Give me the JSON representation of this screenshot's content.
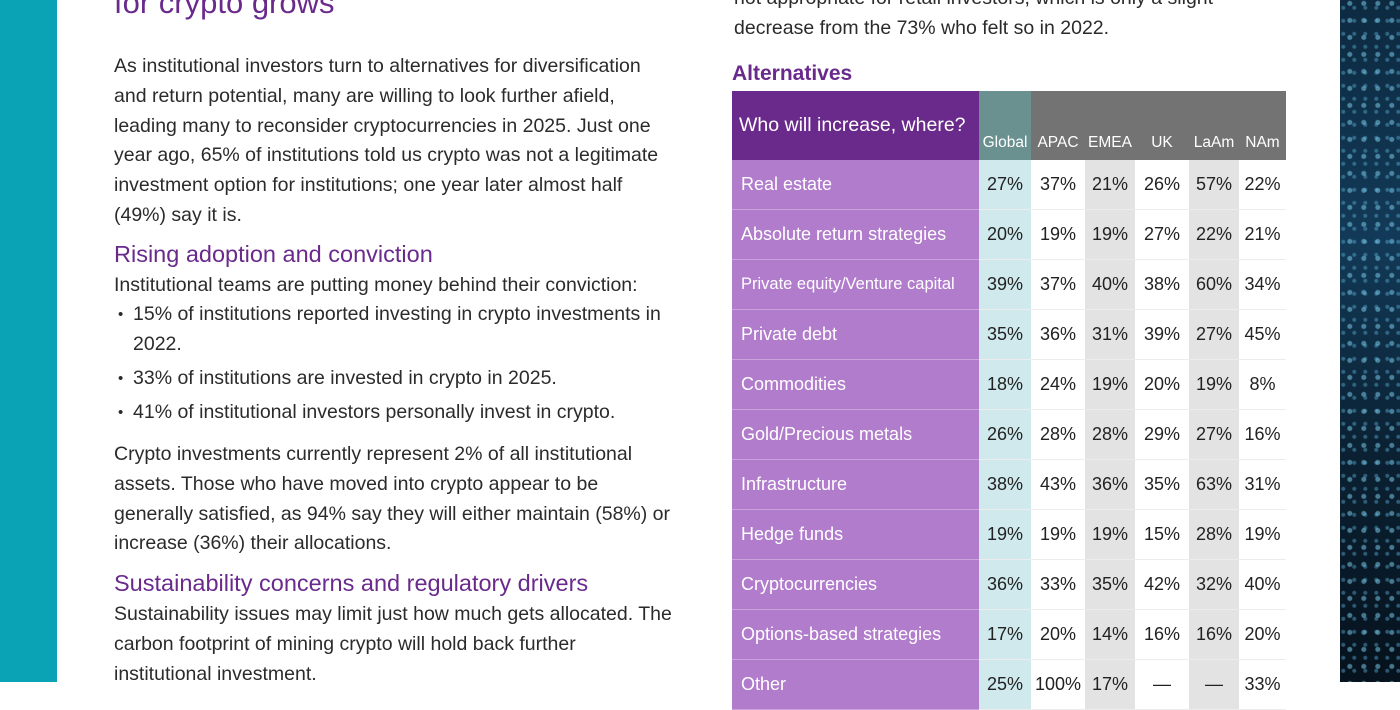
{
  "left_column": {
    "partial_title": "for crypto grows",
    "intro_paragraph": "As institutional investors turn to alternatives for diversification and return potential, many are willing to look further afield, leading many to reconsider cryptocurrencies in 2025. Just one year ago, 65% of institutions told us crypto was not a legitimate investment option for institutions; one year later almost half (49%) say it is.",
    "section1_heading": "Rising adoption and conviction",
    "section1_lead": "Institutional teams are putting money behind their conviction:",
    "section1_bullets": [
      "15% of institutions reported investing in crypto investments in 2022.",
      "33% of institutions are invested in crypto in 2025.",
      "41% of institutional investors personally invest in crypto."
    ],
    "section1_paragraph": "Crypto investments currently represent 2% of all institutional assets. Those who have moved into crypto appear to be generally satisfied, as 94% say they will either maintain (58%) or increase (36%) their allocations.",
    "section2_heading": "Sustainability concerns and regulatory drivers",
    "section2_paragraph": "Sustainability issues may limit just how much gets allocated. The carbon footprint of mining crypto will hold back further institutional investment."
  },
  "right_column": {
    "intro_partial": "not appropriate for retail investors, which is only a slight decrease from the 73% who felt so in 2022.",
    "table_heading": "Alternatives",
    "table": {
      "corner_label": "Who will increase, where?",
      "columns": [
        "Global",
        "APAC",
        "EMEA",
        "UK",
        "LaAm",
        "NAm"
      ],
      "rows": [
        {
          "label": "Real estate",
          "values": [
            "27%",
            "37%",
            "21%",
            "26%",
            "57%",
            "22%"
          ]
        },
        {
          "label": "Absolute return strategies",
          "values": [
            "20%",
            "19%",
            "19%",
            "27%",
            "22%",
            "21%"
          ]
        },
        {
          "label": "Private equity/Venture capital",
          "values": [
            "39%",
            "37%",
            "40%",
            "38%",
            "60%",
            "34%"
          ]
        },
        {
          "label": "Private debt",
          "values": [
            "35%",
            "36%",
            "31%",
            "39%",
            "27%",
            "45%"
          ]
        },
        {
          "label": "Commodities",
          "values": [
            "18%",
            "24%",
            "19%",
            "20%",
            "19%",
            "8%"
          ]
        },
        {
          "label": "Gold/Precious metals",
          "values": [
            "26%",
            "28%",
            "28%",
            "29%",
            "27%",
            "16%"
          ]
        },
        {
          "label": "Infrastructure",
          "values": [
            "38%",
            "43%",
            "36%",
            "35%",
            "63%",
            "31%"
          ]
        },
        {
          "label": "Hedge funds",
          "values": [
            "19%",
            "19%",
            "19%",
            "15%",
            "28%",
            "19%"
          ]
        },
        {
          "label": "Cryptocurrencies",
          "values": [
            "36%",
            "33%",
            "35%",
            "42%",
            "32%",
            "40%"
          ]
        },
        {
          "label": "Options-based strategies",
          "values": [
            "17%",
            "20%",
            "14%",
            "16%",
            "16%",
            "20%"
          ]
        },
        {
          "label": "Other",
          "values": [
            "25%",
            "100%",
            "17%",
            "—",
            "—",
            "33%"
          ]
        }
      ]
    }
  },
  "colors": {
    "brand_purple": "#6a2a8c",
    "row_label_purple": "#b07ccb",
    "teal_band": "#0aa3b5",
    "global_header": "#6a9090",
    "region_header": "#737373",
    "global_cell": "#cfe9ec",
    "alt_cell": "#e3e3e3"
  }
}
